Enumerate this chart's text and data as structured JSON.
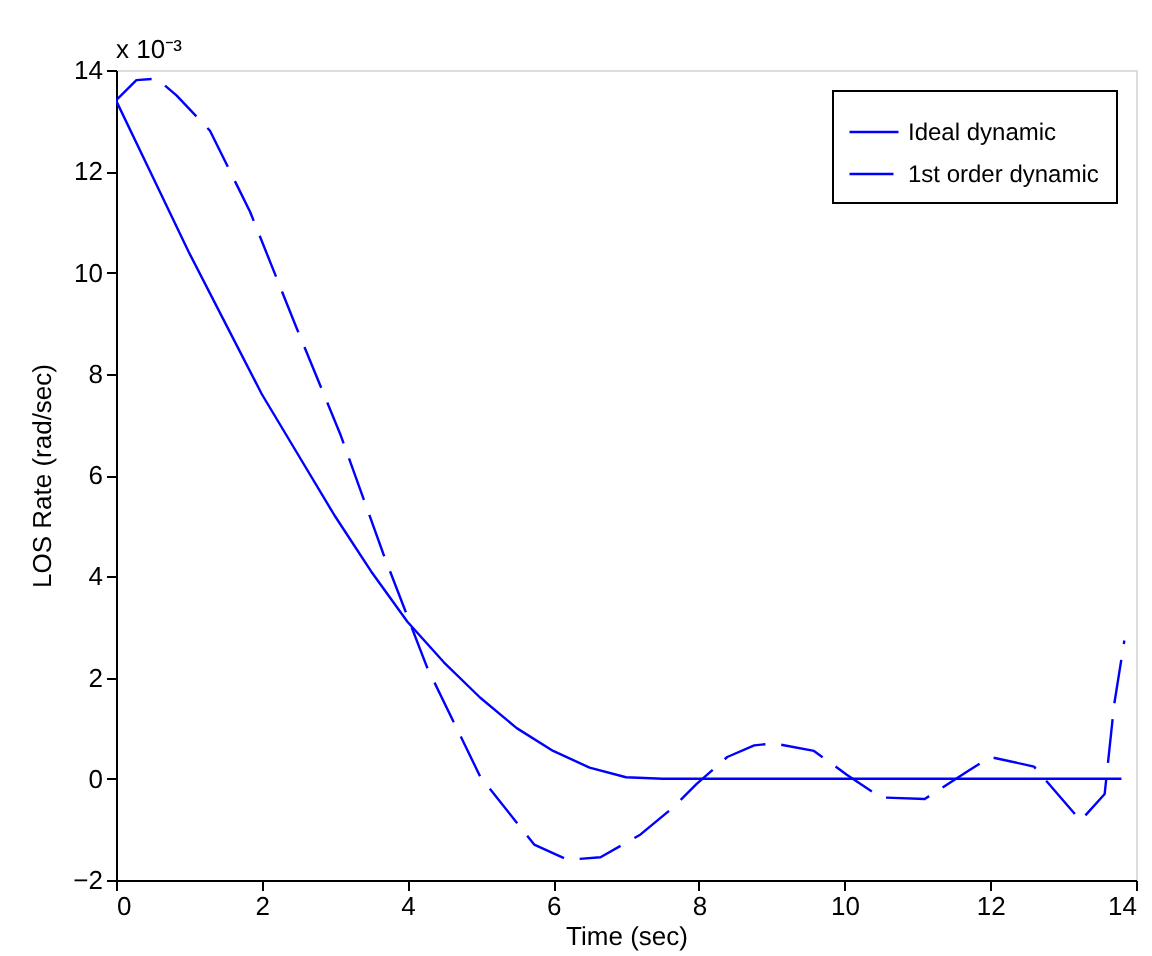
{
  "chart_data": {
    "type": "line",
    "xlabel": "Time (sec)",
    "ylabel": "LOS Rate (rad/sec)",
    "annotations": [
      "x 10⁻³"
    ],
    "xlim": [
      0,
      14
    ],
    "xticks": [
      0,
      2,
      4,
      6,
      8,
      10,
      12,
      14
    ],
    "ylim": [
      -2,
      14
    ],
    "yticks": [
      -2,
      0,
      2,
      4,
      6,
      8,
      10,
      12,
      14
    ],
    "grid": false,
    "legend": "top right",
    "marker": "none",
    "series": [
      {
        "name": "Ideal dynamic",
        "color": "#0000ff",
        "line_style": "solid",
        "x": [
          0,
          0.5,
          1,
          1.5,
          2,
          2.5,
          3,
          3.5,
          4,
          4.5,
          5,
          5.5,
          6,
          6.5,
          7,
          7.5,
          13.8
        ],
        "values": [
          13.4,
          11.9,
          10.4,
          9.0,
          7.6,
          6.4,
          5.2,
          4.1,
          3.1,
          2.3,
          1.6,
          1.0,
          0.55,
          0.22,
          0.03,
          0,
          0
        ]
      },
      {
        "name": "1st order dynamic",
        "color": "#0000ff",
        "line_style": "dashed",
        "x": [
          0,
          0.28,
          0.56,
          0.83,
          1.29,
          1.84,
          2.48,
          3.08,
          3.67,
          4.27,
          5.0,
          5.74,
          6.2,
          6.65,
          7.2,
          7.66,
          7.97,
          8.39,
          8.76,
          9.03,
          9.58,
          10.03,
          10.5,
          11.1,
          11.7,
          12.0,
          12.6,
          13.24,
          13.57,
          13.7,
          13.84
        ],
        "values": [
          13.4,
          13.8,
          13.83,
          13.5,
          12.8,
          11.2,
          8.9,
          6.8,
          4.44,
          2.2,
          0.04,
          -1.3,
          -1.6,
          -1.55,
          -1.1,
          -0.55,
          -0.1,
          0.43,
          0.66,
          0.7,
          0.55,
          0.08,
          -0.37,
          -0.4,
          0.16,
          0.43,
          0.24,
          -0.83,
          -0.3,
          1.46,
          2.73
        ]
      }
    ]
  }
}
